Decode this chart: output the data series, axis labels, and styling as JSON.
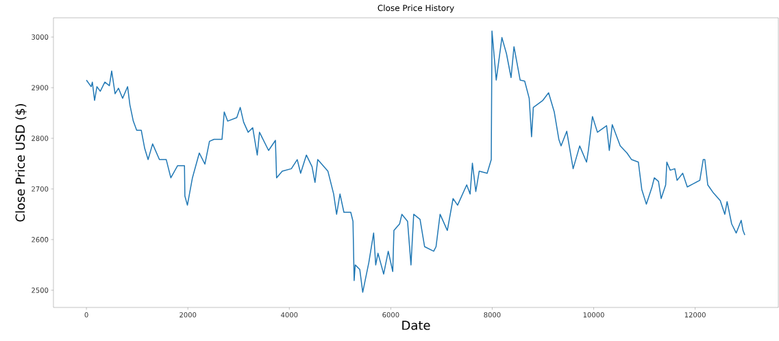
{
  "chart_data": {
    "type": "line",
    "title": "Close Price History",
    "xlabel": "Date",
    "ylabel": "Close Price USD ($)",
    "xlim": [
      -650,
      13640
    ],
    "ylim": [
      2466,
      3038
    ],
    "xticks": [
      0,
      2000,
      4000,
      6000,
      8000,
      10000,
      12000
    ],
    "yticks": [
      2500,
      2600,
      2700,
      2800,
      2900,
      3000
    ],
    "grid": false,
    "marker": "none",
    "line_style": "solid",
    "series": [
      {
        "color": "#1f77b4",
        "x": [
          0,
          94,
          117,
          161,
          207,
          274,
          363,
          453,
          498,
          565,
          632,
          713,
          812,
          857,
          924,
          991,
          1081,
          1149,
          1216,
          1305,
          1439,
          1574,
          1664,
          1798,
          1933,
          1941,
          1991,
          2090,
          2225,
          2336,
          2426,
          2515,
          2673,
          2717,
          2784,
          2964,
          3032,
          3099,
          3188,
          3278,
          3368,
          3412,
          3591,
          3726,
          3749,
          3860,
          4040,
          4156,
          4223,
          4336,
          4448,
          4506,
          4560,
          4761,
          4874,
          4932,
          4999,
          5076,
          5211,
          5255,
          5278,
          5299,
          5389,
          5447,
          5568,
          5662,
          5703,
          5748,
          5860,
          5950,
          6039,
          6062,
          6174,
          6219,
          6331,
          6398,
          6452,
          6577,
          6667,
          6846,
          6892,
          6972,
          7115,
          7228,
          7317,
          7497,
          7564,
          7609,
          7676,
          7743,
          7900,
          7981,
          7995,
          8079,
          8191,
          8281,
          8371,
          8429,
          8550,
          8640,
          8729,
          8775,
          8810,
          8998,
          9111,
          9223,
          9313,
          9357,
          9469,
          9595,
          9724,
          9859,
          9895,
          9976,
          10074,
          10254,
          10308,
          10366,
          10523,
          10657,
          10747,
          10881,
          10948,
          11038,
          11150,
          11195,
          11277,
          11330,
          11419,
          11442,
          11509,
          11599,
          11644,
          11755,
          11845,
          11957,
          12092,
          12159,
          12191,
          12249,
          12361,
          12495,
          12585,
          12630,
          12720,
          12810,
          12908,
          12944,
          12979
        ],
        "values": [
          2915,
          2902,
          2911,
          2875,
          2902,
          2893,
          2911,
          2904,
          2933,
          2888,
          2899,
          2879,
          2902,
          2866,
          2834,
          2816,
          2816,
          2780,
          2758,
          2789,
          2758,
          2758,
          2722,
          2746,
          2746,
          2686,
          2668,
          2722,
          2771,
          2749,
          2794,
          2798,
          2798,
          2852,
          2834,
          2841,
          2861,
          2832,
          2812,
          2821,
          2767,
          2812,
          2776,
          2796,
          2722,
          2735,
          2740,
          2758,
          2731,
          2767,
          2744,
          2713,
          2758,
          2735,
          2690,
          2650,
          2690,
          2654,
          2654,
          2636,
          2519,
          2550,
          2541,
          2496,
          2555,
          2613,
          2550,
          2573,
          2532,
          2577,
          2537,
          2618,
          2631,
          2650,
          2636,
          2550,
          2650,
          2640,
          2586,
          2577,
          2586,
          2650,
          2618,
          2681,
          2668,
          2708,
          2690,
          2751,
          2695,
          2735,
          2731,
          2758,
          3012,
          2915,
          2999,
          2967,
          2920,
          2981,
          2915,
          2913,
          2879,
          2803,
          2861,
          2875,
          2890,
          2852,
          2798,
          2785,
          2814,
          2740,
          2785,
          2753,
          2776,
          2843,
          2812,
          2825,
          2776,
          2827,
          2785,
          2771,
          2758,
          2753,
          2699,
          2670,
          2704,
          2722,
          2715,
          2681,
          2708,
          2753,
          2737,
          2740,
          2717,
          2731,
          2704,
          2710,
          2717,
          2758,
          2758,
          2708,
          2692,
          2677,
          2650,
          2675,
          2631,
          2613,
          2638,
          2618,
          2609
        ]
      }
    ]
  }
}
